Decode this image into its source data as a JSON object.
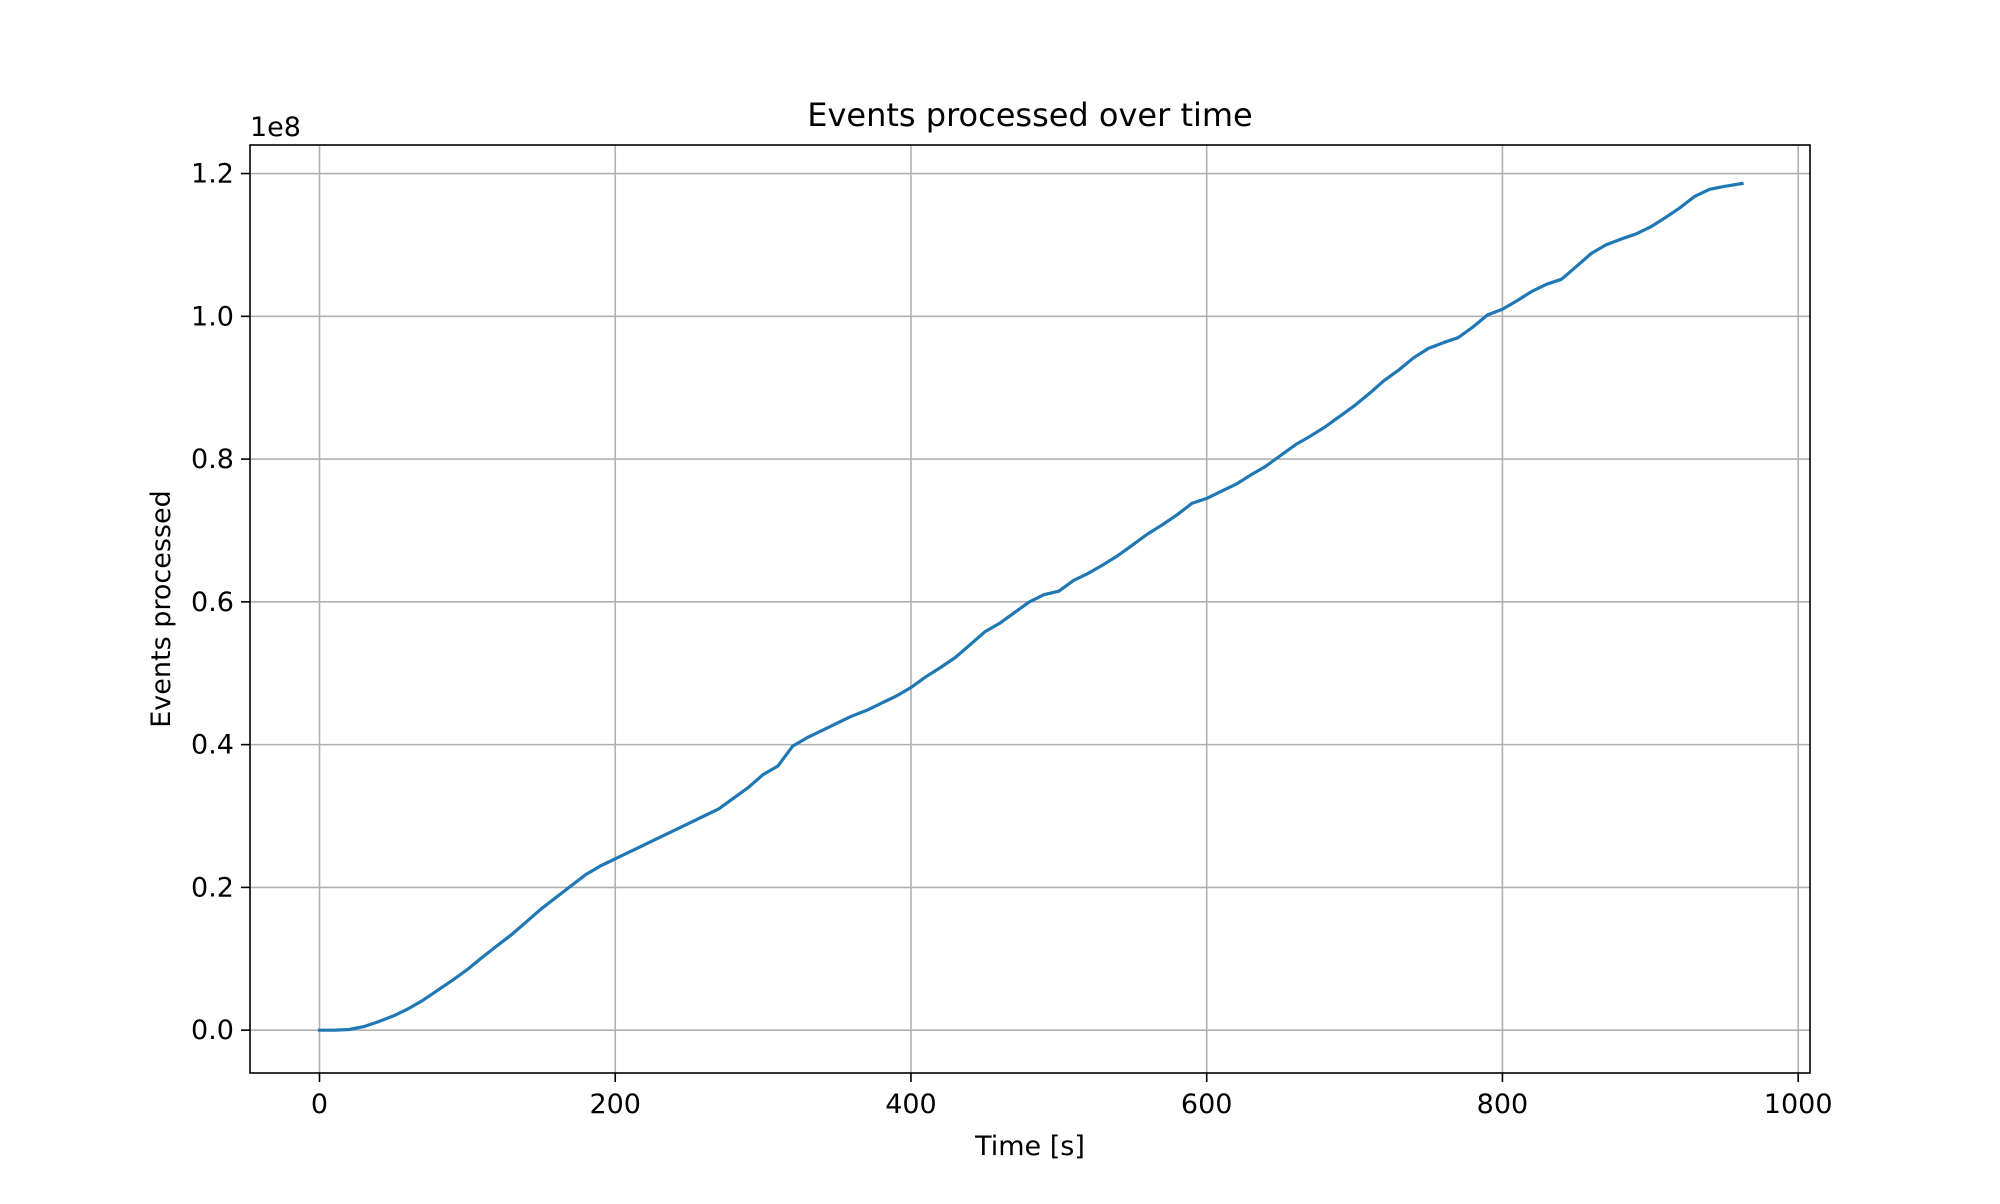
{
  "chart_data": {
    "type": "line",
    "title": "Events processed over time",
    "xlabel": "Time [s]",
    "ylabel": "Events processed",
    "y_offset_label": "1e8",
    "xlim": [
      -47,
      1008
    ],
    "ylim": [
      -6000000,
      124000000
    ],
    "x_ticks": [
      0,
      200,
      400,
      600,
      800,
      1000
    ],
    "x_tick_labels": [
      "0",
      "200",
      "400",
      "600",
      "800",
      "1000"
    ],
    "y_ticks": [
      0,
      20000000,
      40000000,
      60000000,
      80000000,
      100000000,
      120000000
    ],
    "y_tick_labels": [
      "0.0",
      "0.2",
      "0.4",
      "0.6",
      "0.8",
      "1.0",
      "1.2"
    ],
    "grid": true,
    "series": [
      {
        "color": "#1f77b4",
        "x": [
          0,
          10,
          20,
          30,
          40,
          50,
          60,
          70,
          80,
          90,
          100,
          110,
          120,
          130,
          140,
          150,
          160,
          170,
          180,
          190,
          200,
          210,
          220,
          230,
          240,
          250,
          260,
          270,
          280,
          290,
          300,
          310,
          320,
          330,
          340,
          350,
          360,
          370,
          380,
          390,
          400,
          410,
          420,
          430,
          440,
          450,
          460,
          470,
          480,
          490,
          500,
          510,
          520,
          530,
          540,
          550,
          560,
          570,
          580,
          590,
          600,
          610,
          620,
          630,
          640,
          650,
          660,
          670,
          680,
          690,
          700,
          710,
          720,
          730,
          740,
          750,
          760,
          770,
          780,
          790,
          800,
          810,
          820,
          830,
          840,
          850,
          860,
          870,
          880,
          890,
          900,
          910,
          920,
          930,
          940,
          950,
          962
        ],
        "y": [
          0,
          0,
          100000,
          500000,
          1200000,
          2000000,
          3000000,
          4200000,
          5600000,
          7000000,
          8500000,
          10200000,
          11800000,
          13400000,
          15200000,
          17000000,
          18600000,
          20200000,
          21800000,
          23000000,
          24000000,
          25000000,
          26000000,
          27000000,
          28000000,
          29000000,
          30000000,
          31000000,
          32500000,
          34000000,
          35800000,
          37000000,
          39800000,
          41000000,
          42000000,
          43000000,
          44000000,
          44800000,
          45800000,
          46800000,
          48000000,
          49500000,
          50800000,
          52200000,
          54000000,
          55800000,
          57000000,
          58500000,
          60000000,
          61000000,
          61500000,
          63000000,
          64000000,
          65200000,
          66500000,
          68000000,
          69500000,
          70800000,
          72200000,
          73800000,
          74500000,
          75500000,
          76500000,
          77800000,
          79000000,
          80500000,
          82000000,
          83200000,
          84500000,
          86000000,
          87500000,
          89200000,
          91000000,
          92500000,
          94200000,
          95500000,
          96300000,
          97000000,
          98500000,
          100200000,
          101000000,
          102200000,
          103500000,
          104500000,
          105200000,
          107000000,
          108800000,
          110000000,
          110800000,
          111500000,
          112500000,
          113800000,
          115200000,
          116800000,
          117800000,
          118200000,
          118600000
        ]
      }
    ]
  }
}
